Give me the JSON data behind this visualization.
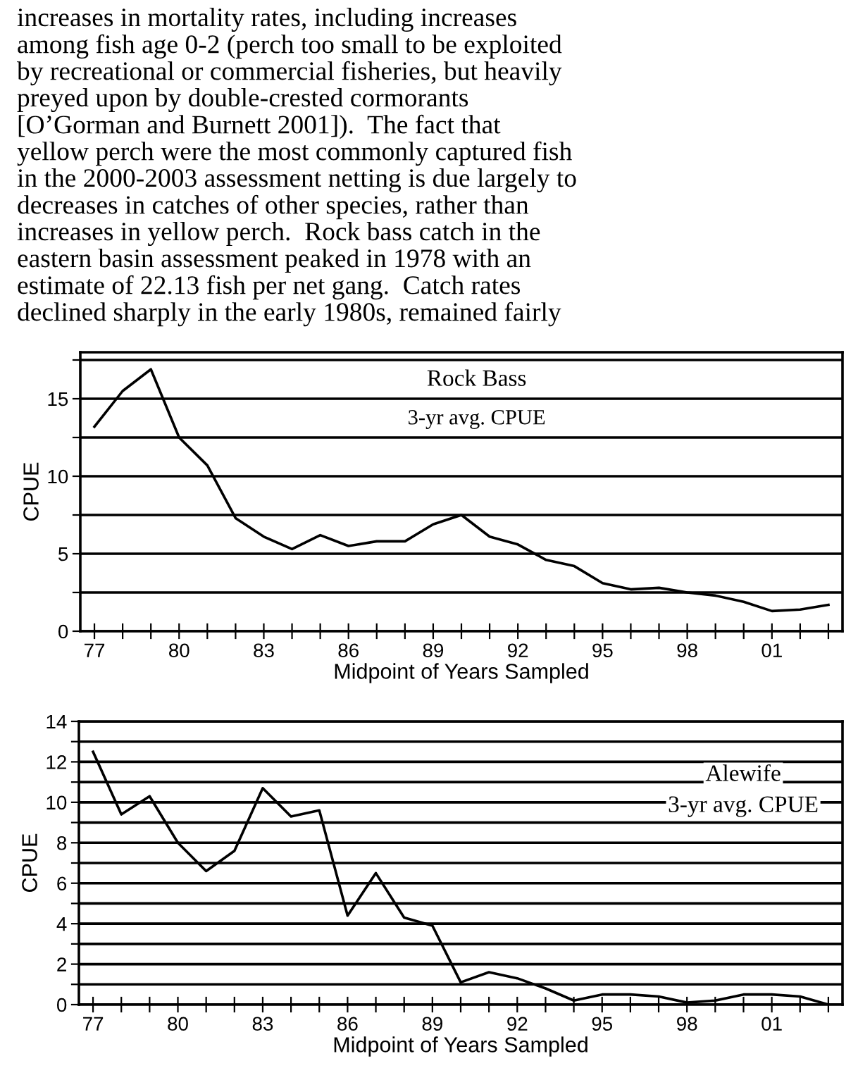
{
  "chart_data": [
    {
      "type": "other",
      "annotations": [
        "increases in mortality rates, including increases",
        "among fish age 0-2 (perch too small to be exploited",
        "by recreational or commercial fisheries, but heavily",
        "preyed upon by double-crested cormorants",
        "[O’Gorman and Burnett 2001]).  The fact that",
        "yellow perch were the most commonly captured fish",
        "in the 2000-2003 assessment netting is due largely to",
        "decreases in catches of other species, rather than",
        "increases in yellow perch.  Rock bass catch in the",
        "eastern basin assessment peaked in 1978 with an",
        "estimate of 22.13 fish per net gang.  Catch rates",
        "declined sharply in the early 1980s, remained fairly"
      ]
    },
    {
      "type": "line",
      "title": "Rock Bass",
      "subtitle": "3-yr avg. CPUE",
      "xlabel": "Midpoint of Years Sampled",
      "ylabel": "CPUE",
      "x": [
        1977,
        1978,
        1979,
        1980,
        1981,
        1982,
        1983,
        1984,
        1985,
        1986,
        1987,
        1988,
        1989,
        1990,
        1991,
        1992,
        1993,
        1994,
        1995,
        1996,
        1997,
        1998,
        1999,
        2000,
        2001,
        2002,
        2003
      ],
      "series": [
        {
          "color": "#000000",
          "values": [
            13.2,
            15.5,
            16.9,
            12.5,
            10.7,
            7.3,
            6.1,
            5.3,
            6.2,
            5.5,
            5.8,
            5.8,
            6.9,
            7.5,
            6.1,
            5.6,
            4.6,
            4.2,
            3.1,
            2.7,
            2.8,
            2.5,
            2.3,
            1.9,
            1.3,
            1.4,
            1.7
          ]
        }
      ],
      "xlim": [
        1976.5,
        2003.5
      ],
      "ylim": [
        0,
        18
      ],
      "xticks": [
        {
          "value": 1977,
          "label": "77"
        },
        {
          "value": 1978,
          "label": null
        },
        {
          "value": 1979,
          "label": null
        },
        {
          "value": 1980,
          "label": "80"
        },
        {
          "value": 1981,
          "label": null
        },
        {
          "value": 1982,
          "label": null
        },
        {
          "value": 1983,
          "label": "83"
        },
        {
          "value": 1984,
          "label": null
        },
        {
          "value": 1985,
          "label": null
        },
        {
          "value": 1986,
          "label": "86"
        },
        {
          "value": 1987,
          "label": null
        },
        {
          "value": 1988,
          "label": null
        },
        {
          "value": 1989,
          "label": "89"
        },
        {
          "value": 1990,
          "label": null
        },
        {
          "value": 1991,
          "label": null
        },
        {
          "value": 1992,
          "label": "92"
        },
        {
          "value": 1993,
          "label": null
        },
        {
          "value": 1994,
          "label": null
        },
        {
          "value": 1995,
          "label": "95"
        },
        {
          "value": 1996,
          "label": null
        },
        {
          "value": 1997,
          "label": null
        },
        {
          "value": 1998,
          "label": "98"
        },
        {
          "value": 1999,
          "label": null
        },
        {
          "value": 2000,
          "label": null
        },
        {
          "value": 2001,
          "label": "01"
        },
        {
          "value": 2002,
          "label": null
        },
        {
          "value": 2003,
          "label": null
        }
      ],
      "yticks": [
        0,
        {
          "value": 2.5,
          "label": null
        },
        5,
        {
          "value": 7.5,
          "label": null
        },
        10,
        {
          "value": 12.5,
          "label": null
        },
        15,
        {
          "value": 17.5,
          "label": null
        }
      ],
      "grid": "y",
      "marker": "none",
      "line_style": "solid"
    },
    {
      "type": "line",
      "title": "Alewife",
      "subtitle": "3-yr avg. CPUE",
      "xlabel": "Midpoint of Years Sampled",
      "ylabel": "CPUE",
      "x": [
        1977,
        1978,
        1979,
        1980,
        1981,
        1982,
        1983,
        1984,
        1985,
        1986,
        1987,
        1988,
        1989,
        1990,
        1991,
        1992,
        1993,
        1994,
        1995,
        1996,
        1997,
        1998,
        1999,
        2000,
        2001,
        2002,
        2003
      ],
      "series": [
        {
          "color": "#000000",
          "values": [
            12.5,
            9.4,
            10.3,
            8.0,
            6.6,
            7.6,
            10.7,
            9.3,
            9.6,
            4.4,
            6.5,
            4.3,
            3.9,
            1.1,
            1.6,
            1.3,
            0.8,
            0.2,
            0.5,
            0.5,
            0.4,
            0.1,
            0.2,
            0.5,
            0.5,
            0.4,
            0.0
          ]
        }
      ],
      "xlim": [
        1976.5,
        2003.5
      ],
      "ylim": [
        0,
        14
      ],
      "xticks": [
        {
          "value": 1977,
          "label": "77"
        },
        {
          "value": 1978,
          "label": null
        },
        {
          "value": 1979,
          "label": null
        },
        {
          "value": 1980,
          "label": "80"
        },
        {
          "value": 1981,
          "label": null
        },
        {
          "value": 1982,
          "label": null
        },
        {
          "value": 1983,
          "label": "83"
        },
        {
          "value": 1984,
          "label": null
        },
        {
          "value": 1985,
          "label": null
        },
        {
          "value": 1986,
          "label": "86"
        },
        {
          "value": 1987,
          "label": null
        },
        {
          "value": 1988,
          "label": null
        },
        {
          "value": 1989,
          "label": "89"
        },
        {
          "value": 1990,
          "label": null
        },
        {
          "value": 1991,
          "label": null
        },
        {
          "value": 1992,
          "label": "92"
        },
        {
          "value": 1993,
          "label": null
        },
        {
          "value": 1994,
          "label": null
        },
        {
          "value": 1995,
          "label": "95"
        },
        {
          "value": 1996,
          "label": null
        },
        {
          "value": 1997,
          "label": null
        },
        {
          "value": 1998,
          "label": "98"
        },
        {
          "value": 1999,
          "label": null
        },
        {
          "value": 2000,
          "label": null
        },
        {
          "value": 2001,
          "label": "01"
        },
        {
          "value": 2002,
          "label": null
        },
        {
          "value": 2003,
          "label": null
        }
      ],
      "yticks": [
        0,
        {
          "value": 1,
          "label": null
        },
        2,
        {
          "value": 3,
          "label": null
        },
        4,
        {
          "value": 5,
          "label": null
        },
        6,
        {
          "value": 7,
          "label": null
        },
        8,
        {
          "value": 9,
          "label": null
        },
        10,
        {
          "value": 11,
          "label": null
        },
        12,
        {
          "value": 13,
          "label": null
        },
        14
      ],
      "grid": "y",
      "marker": "none",
      "line_style": "solid"
    }
  ]
}
